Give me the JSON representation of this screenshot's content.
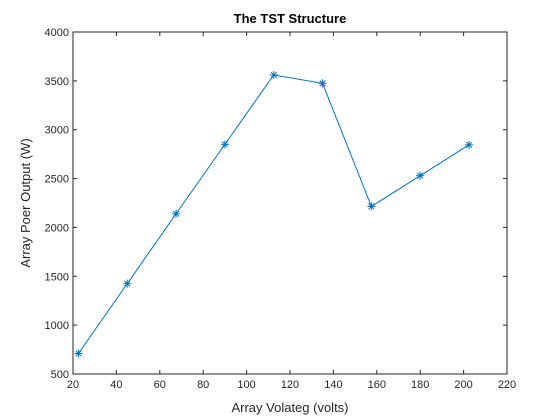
{
  "chart_data": {
    "type": "line",
    "title": "The TST Structure",
    "xlabel": "Array Volateg (volts)",
    "ylabel": "Array Poer Output (W)",
    "xlim": [
      20,
      220
    ],
    "ylim": [
      500,
      4000
    ],
    "xticks": [
      20,
      40,
      60,
      80,
      100,
      120,
      140,
      160,
      180,
      200,
      220
    ],
    "yticks": [
      500,
      1000,
      1500,
      2000,
      2500,
      3000,
      3500,
      4000
    ],
    "grid": false,
    "marker": "asterisk",
    "color": "#0072BD",
    "series": [
      {
        "x": [
          22.5,
          45,
          67.5,
          90,
          112.5,
          135,
          157.5,
          180,
          202.5
        ],
        "y": [
          710,
          1425,
          2140,
          2850,
          3560,
          3475,
          2215,
          2530,
          2845
        ]
      }
    ]
  }
}
